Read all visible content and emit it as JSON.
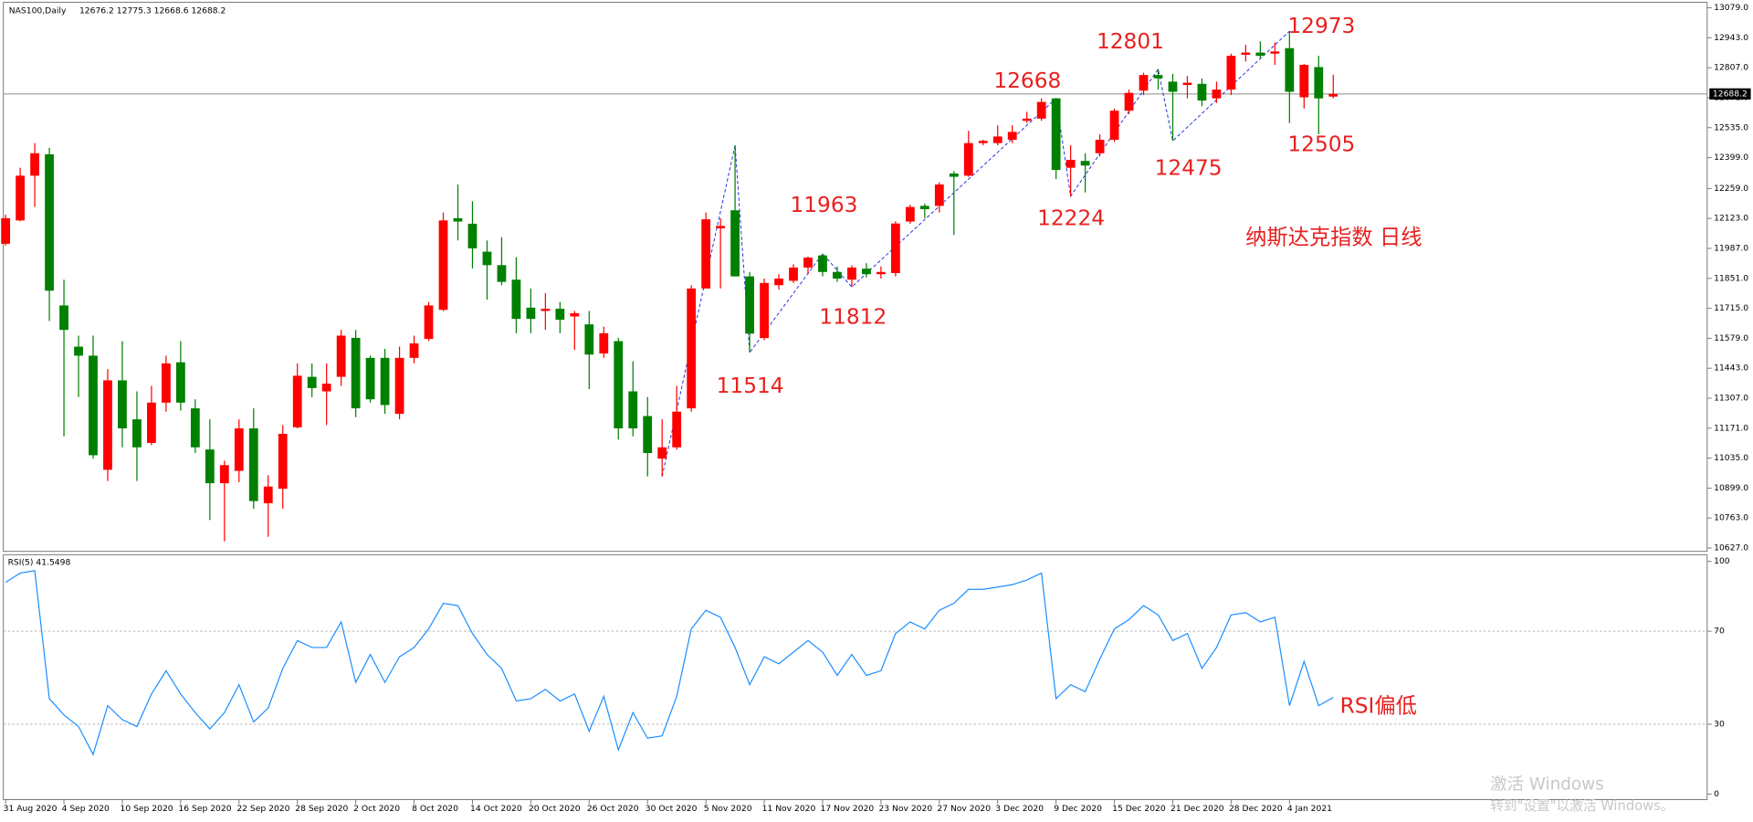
{
  "chart_data": [
    {
      "type": "candlestick",
      "title": "NAS100,Daily",
      "subtitle": "12676.2 12775.3 12668.6 12688.2",
      "x": [
        "31 Aug 2020",
        null,
        null,
        null,
        "4 Sep 2020",
        null,
        null,
        null,
        "10 Sep 2020",
        null,
        null,
        null,
        "16 Sep 2020",
        null,
        null,
        null,
        "22 Sep 2020",
        null,
        null,
        null,
        "28 Sep 2020",
        null,
        null,
        null,
        "2 Oct 2020",
        null,
        null,
        null,
        "8 Oct 2020",
        null,
        null,
        null,
        "14 Oct 2020",
        null,
        null,
        null,
        "20 Oct 2020",
        null,
        null,
        null,
        "26 Oct 2020",
        null,
        null,
        null,
        "30 Oct 2020",
        null,
        null,
        null,
        "5 Nov 2020",
        null,
        null,
        null,
        "11 Nov 2020",
        null,
        null,
        null,
        "17 Nov 2020",
        null,
        null,
        null,
        "23 Nov 2020",
        null,
        null,
        null,
        "27 Nov 2020",
        null,
        null,
        null,
        "3 Dec 2020",
        null,
        null,
        null,
        "9 Dec 2020",
        null,
        null,
        null,
        "15 Dec 2020",
        null,
        null,
        null,
        "21 Dec 2020",
        null,
        null,
        null,
        "28 Dec 2020",
        null,
        null,
        null,
        "4 Jan 2021",
        null,
        null,
        null
      ],
      "open": [
        12008,
        12114,
        12317,
        12414,
        11728,
        11541,
        11500,
        10982,
        11388,
        11211,
        11104,
        11287,
        11470,
        11261,
        11074,
        10921,
        10977,
        11170,
        10830,
        10896,
        11175,
        11404,
        11338,
        11404,
        11581,
        11490,
        11490,
        11236,
        11490,
        11576,
        11708,
        12124,
        12099,
        11972,
        11911,
        11845,
        11718,
        11703,
        11713,
        11678,
        11642,
        11510,
        11566,
        11338,
        11226,
        11033,
        11084,
        11261,
        11805,
        12078,
        12160,
        11860,
        11580,
        11820,
        11840,
        11900,
        11955,
        11880,
        11845,
        11895,
        11870,
        11875,
        12109,
        12180,
        12180,
        12327,
        12317,
        12465,
        12465,
        12480,
        12566,
        12576,
        12668,
        12353,
        12384,
        12419,
        12480,
        12612,
        12703,
        12774,
        12744,
        12729,
        12734,
        12668,
        12708,
        12866,
        12876,
        12871,
        12896,
        12673,
        12810,
        12676.2
      ],
      "high": [
        12140,
        12353,
        12465,
        12444,
        11845,
        11591,
        11591,
        11439,
        11566,
        11338,
        11363,
        11500,
        11566,
        11302,
        11211,
        11023,
        11211,
        11261,
        10957,
        11185,
        11465,
        11465,
        11465,
        11617,
        11617,
        11500,
        11531,
        11541,
        11591,
        11744,
        12150,
        12277,
        12201,
        12023,
        12038,
        11947,
        11805,
        11784,
        11744,
        11703,
        11703,
        11632,
        11581,
        11475,
        11312,
        11211,
        11363,
        11820,
        12150,
        12124,
        12455,
        11880,
        11850,
        11870,
        11915,
        11950,
        11963,
        11905,
        11910,
        11920,
        11905,
        12110,
        12185,
        12190,
        12287,
        12338,
        12521,
        12480,
        12546,
        12546,
        12607,
        12668,
        12668,
        12455,
        12419,
        12505,
        12622,
        12708,
        12784,
        12801,
        12779,
        12769,
        12759,
        12744,
        12871,
        12911,
        12927,
        12922,
        12973,
        12825,
        12861,
        12775.3
      ],
      "low": [
        12000,
        12110,
        12175,
        11657,
        11134,
        11312,
        11033,
        10931,
        11084,
        10931,
        11094,
        11246,
        11251,
        11058,
        10754,
        10657,
        10926,
        10805,
        10678,
        10805,
        11170,
        11312,
        11185,
        11363,
        11221,
        11287,
        11236,
        11211,
        11465,
        11566,
        11703,
        12023,
        11896,
        11754,
        11820,
        11602,
        11602,
        11617,
        11602,
        11526,
        11348,
        11490,
        11119,
        11134,
        10952,
        10952,
        11074,
        11246,
        11820,
        11805,
        11860,
        11514,
        11570,
        11800,
        11830,
        11870,
        11860,
        11835,
        11812,
        11855,
        11850,
        11860,
        12099,
        12124,
        12150,
        12048,
        12312,
        12455,
        12455,
        12465,
        12556,
        12566,
        12302,
        12224,
        12241,
        12404,
        12470,
        12597,
        12683,
        12708,
        12475,
        12668,
        12632,
        12647,
        12683,
        12835,
        12851,
        12820,
        12556,
        12622,
        12505,
        12668.6
      ],
      "close": [
        12124,
        12317,
        12419,
        11795,
        11617,
        11500,
        11048,
        11388,
        11170,
        11084,
        11287,
        11465,
        11287,
        11084,
        10921,
        11003,
        11170,
        10840,
        10906,
        11145,
        11409,
        11353,
        11373,
        11591,
        11261,
        11302,
        11276,
        11490,
        11556,
        11728,
        12114,
        12109,
        11987,
        11911,
        11835,
        11667,
        11667,
        11713,
        11663,
        11693,
        11505,
        11602,
        11170,
        11170,
        11058,
        11084,
        11246,
        11805,
        12119,
        12089,
        11860,
        11600,
        11830,
        11850,
        11900,
        11945,
        11880,
        11850,
        11900,
        11870,
        11880,
        12100,
        12175,
        12165,
        12277,
        12312,
        12465,
        12475,
        12495,
        12516,
        12576,
        12652,
        12343,
        12389,
        12363,
        12480,
        12612,
        12693,
        12774,
        12759,
        12698,
        12739,
        12658,
        12708,
        12861,
        12876,
        12861,
        12881,
        12698,
        12820,
        12668,
        12688.2
      ],
      "up_color": "#ff0000",
      "down_color": "#008000",
      "current_price": 12688.2,
      "ylim": [
        10627,
        13079
      ],
      "yticks": [
        {
          "value": 13079,
          "label": "13079.0"
        },
        {
          "value": 12943,
          "label": "12943.0"
        },
        {
          "value": 12807,
          "label": "12807.0"
        },
        {
          "value": 12671,
          "label": "12671.0"
        },
        {
          "value": 12535,
          "label": "12535.0"
        },
        {
          "value": 12399,
          "label": "12399.0"
        },
        {
          "value": 12259,
          "label": "12259.0"
        },
        {
          "value": 12123,
          "label": "12123.0"
        },
        {
          "value": 11987,
          "label": "11987.0"
        },
        {
          "value": 11851,
          "label": "11851.0"
        },
        {
          "value": 11715,
          "label": "11715.0"
        },
        {
          "value": 11579,
          "label": "11579.0"
        },
        {
          "value": 11443,
          "label": "11443.0"
        },
        {
          "value": 11307,
          "label": "11307.0"
        },
        {
          "value": 11171,
          "label": "11171.0"
        },
        {
          "value": 11035,
          "label": "11035.0"
        },
        {
          "value": 10899,
          "label": "10899.0"
        },
        {
          "value": 10763,
          "label": "10763.0"
        },
        {
          "value": 10627,
          "label": "10627.0"
        }
      ],
      "annotations": [
        12973,
        12801,
        12668,
        11963,
        12224,
        12475,
        12505,
        11812,
        11514,
        "纳斯达克指数 日线"
      ],
      "annotation_color": "#e8201f"
    },
    {
      "type": "line",
      "title": "RSI(5) 41.5498",
      "values": [
        91,
        95,
        96,
        41,
        34,
        29,
        17,
        38,
        32,
        29,
        43,
        53,
        43,
        35,
        28,
        35,
        47,
        31,
        37,
        54,
        66,
        63,
        63,
        74,
        48,
        60,
        48,
        59,
        63,
        71,
        82,
        81,
        69,
        60,
        54,
        40,
        41,
        45,
        40,
        43,
        27,
        42,
        19,
        35,
        24,
        25,
        42,
        71,
        79,
        76,
        63,
        47,
        59,
        56,
        61,
        66,
        61,
        51,
        60,
        51,
        53,
        69,
        74,
        71,
        79,
        82,
        88,
        88,
        89,
        90,
        92,
        95,
        41,
        47,
        44,
        58,
        71,
        75,
        81,
        77,
        66,
        69,
        54,
        63,
        77,
        78,
        74,
        76,
        38,
        57,
        38,
        41.5498
      ],
      "color": "#1e90ff",
      "ylim": [
        0,
        100
      ],
      "yticks": [
        100,
        70,
        30,
        0
      ],
      "levels": [
        70,
        30
      ],
      "annotations": [
        "RSI偏低"
      ],
      "annotation_color": "#e8201f"
    }
  ],
  "watermark": {
    "title": "激活 Windows",
    "text": "转到\"设置\"以激活 Windows。"
  }
}
